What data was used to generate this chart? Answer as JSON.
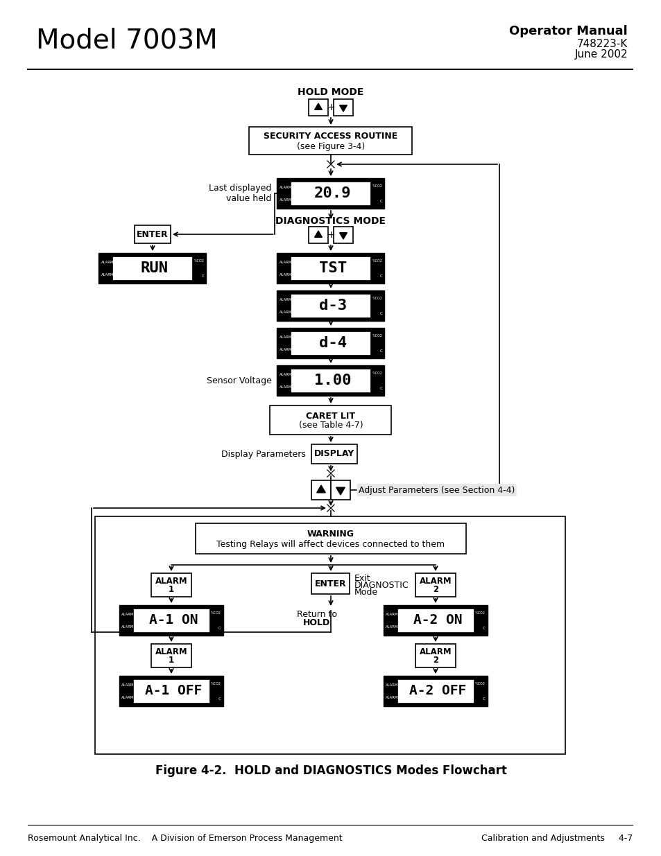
{
  "title_left": "Model 7003M",
  "title_right_line1": "Operator Manual",
  "title_right_line2": "748223-K",
  "title_right_line3": "June 2002",
  "figure_caption": "Figure 4-2.  HOLD and DIAGNOSTICS Modes Flowchart",
  "footer_left": "Rosemount Analytical Inc.    A Division of Emerson Process Management",
  "footer_right": "Calibration and Adjustments     4-7",
  "bg_color": "#ffffff"
}
